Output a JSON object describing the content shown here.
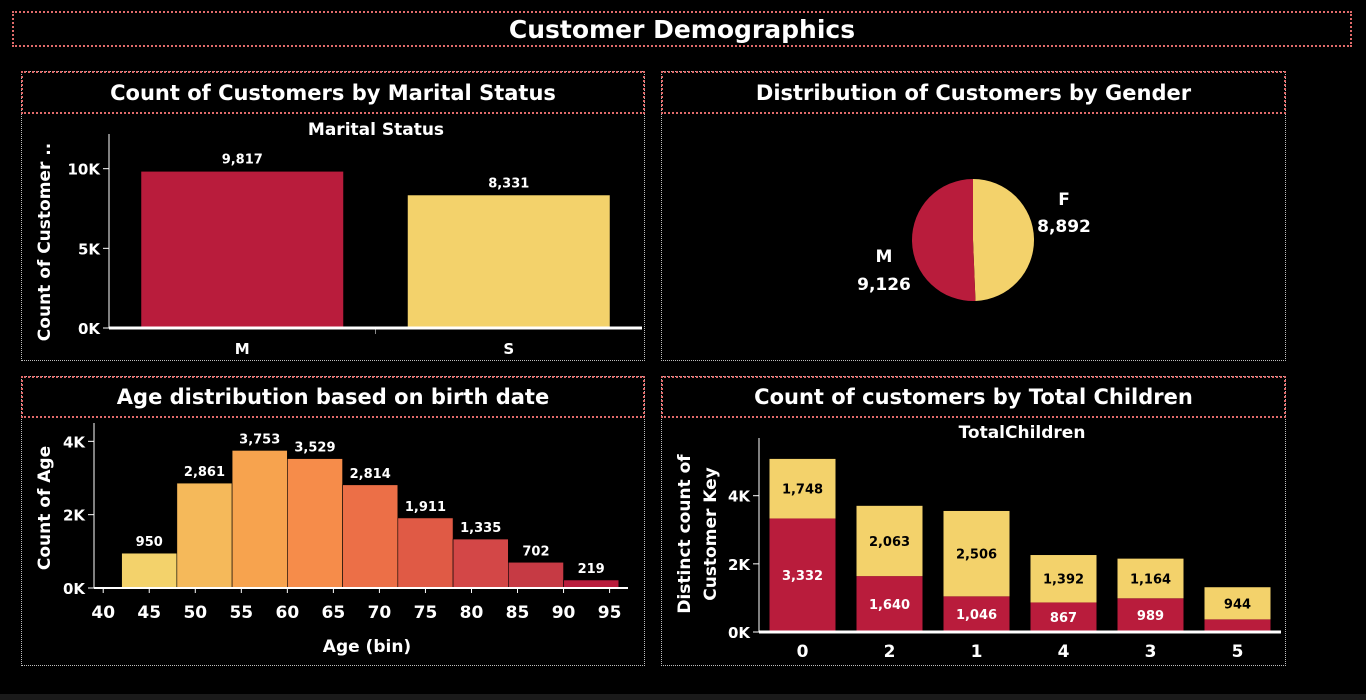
{
  "dashboard": {
    "title": "Customer Demographics"
  },
  "panels": {
    "marital": {
      "title": "Count of Customers by Marital Status"
    },
    "gender": {
      "title": "Distribution of Customers by Gender"
    },
    "age": {
      "title": "Age distribution based on birth date"
    },
    "children": {
      "title": "Count of customers by Total Children"
    }
  },
  "colors": {
    "red": "#b91c3c",
    "yellow": "#f3d26b",
    "border": "#e06a6a"
  },
  "chart_data": [
    {
      "id": "marital",
      "type": "bar",
      "title": "Marital Status",
      "ylabel": "Count of Customer ..",
      "categories": [
        "M",
        "S"
      ],
      "values": [
        9817,
        8331
      ],
      "value_labels": [
        "9,817",
        "8,331"
      ],
      "ylim": [
        0,
        11800
      ],
      "yticks": [
        0,
        5000,
        10000
      ],
      "ytick_labels": [
        "0K",
        "5K",
        "10K"
      ],
      "bar_colors": [
        "#b91c3c",
        "#f3d26b"
      ]
    },
    {
      "id": "gender",
      "type": "pie",
      "slices": [
        {
          "label": "F",
          "value": 8892,
          "value_label": "8,892",
          "color": "#f3d26b"
        },
        {
          "label": "M",
          "value": 9126,
          "value_label": "9,126",
          "color": "#b91c3c"
        }
      ]
    },
    {
      "id": "age",
      "type": "bar",
      "xlabel": "Age (bin)",
      "ylabel": "Count of Age",
      "bin_width": 6,
      "bin_starts": [
        42,
        48,
        54,
        60,
        66,
        72,
        78,
        84,
        90
      ],
      "values": [
        950,
        2861,
        3753,
        3529,
        2814,
        1911,
        1335,
        702,
        219
      ],
      "value_labels": [
        "950",
        "2,861",
        "3,753",
        "3,529",
        "2,814",
        "1,911",
        "1,335",
        "702",
        "219"
      ],
      "bar_colors": [
        "#f3d26b",
        "#f5b95a",
        "#f7a34e",
        "#f68c4a",
        "#ec6f47",
        "#e05a45",
        "#d34747",
        "#c63a44",
        "#b91c3c"
      ],
      "xlim": [
        39,
        97
      ],
      "xticks": [
        40,
        45,
        50,
        55,
        60,
        65,
        70,
        75,
        80,
        85,
        90,
        95
      ],
      "ylim": [
        0,
        4500
      ],
      "yticks": [
        0,
        2000,
        4000
      ],
      "ytick_labels": [
        "0K",
        "2K",
        "4K"
      ]
    },
    {
      "id": "children",
      "type": "bar",
      "stacked": true,
      "title": "TotalChildren",
      "ylabel": [
        "Distinct count of",
        "Customer Key"
      ],
      "categories": [
        "0",
        "2",
        "1",
        "4",
        "3",
        "5"
      ],
      "series": [
        {
          "color": "#b91c3c",
          "values": [
            3332,
            1640,
            1046,
            867,
            989,
            370
          ],
          "value_labels": [
            "3,332",
            "1,640",
            "1,046",
            "867",
            "989",
            ""
          ]
        },
        {
          "color": "#f3d26b",
          "values": [
            1748,
            2063,
            2506,
            1392,
            1164,
            944
          ],
          "value_labels": [
            "1,748",
            "2,063",
            "2,506",
            "1,392",
            "1,164",
            "944"
          ]
        }
      ],
      "ylim": [
        0,
        5400
      ],
      "yticks": [
        0,
        2000,
        4000
      ],
      "ytick_labels": [
        "0K",
        "2K",
        "4K"
      ]
    }
  ]
}
